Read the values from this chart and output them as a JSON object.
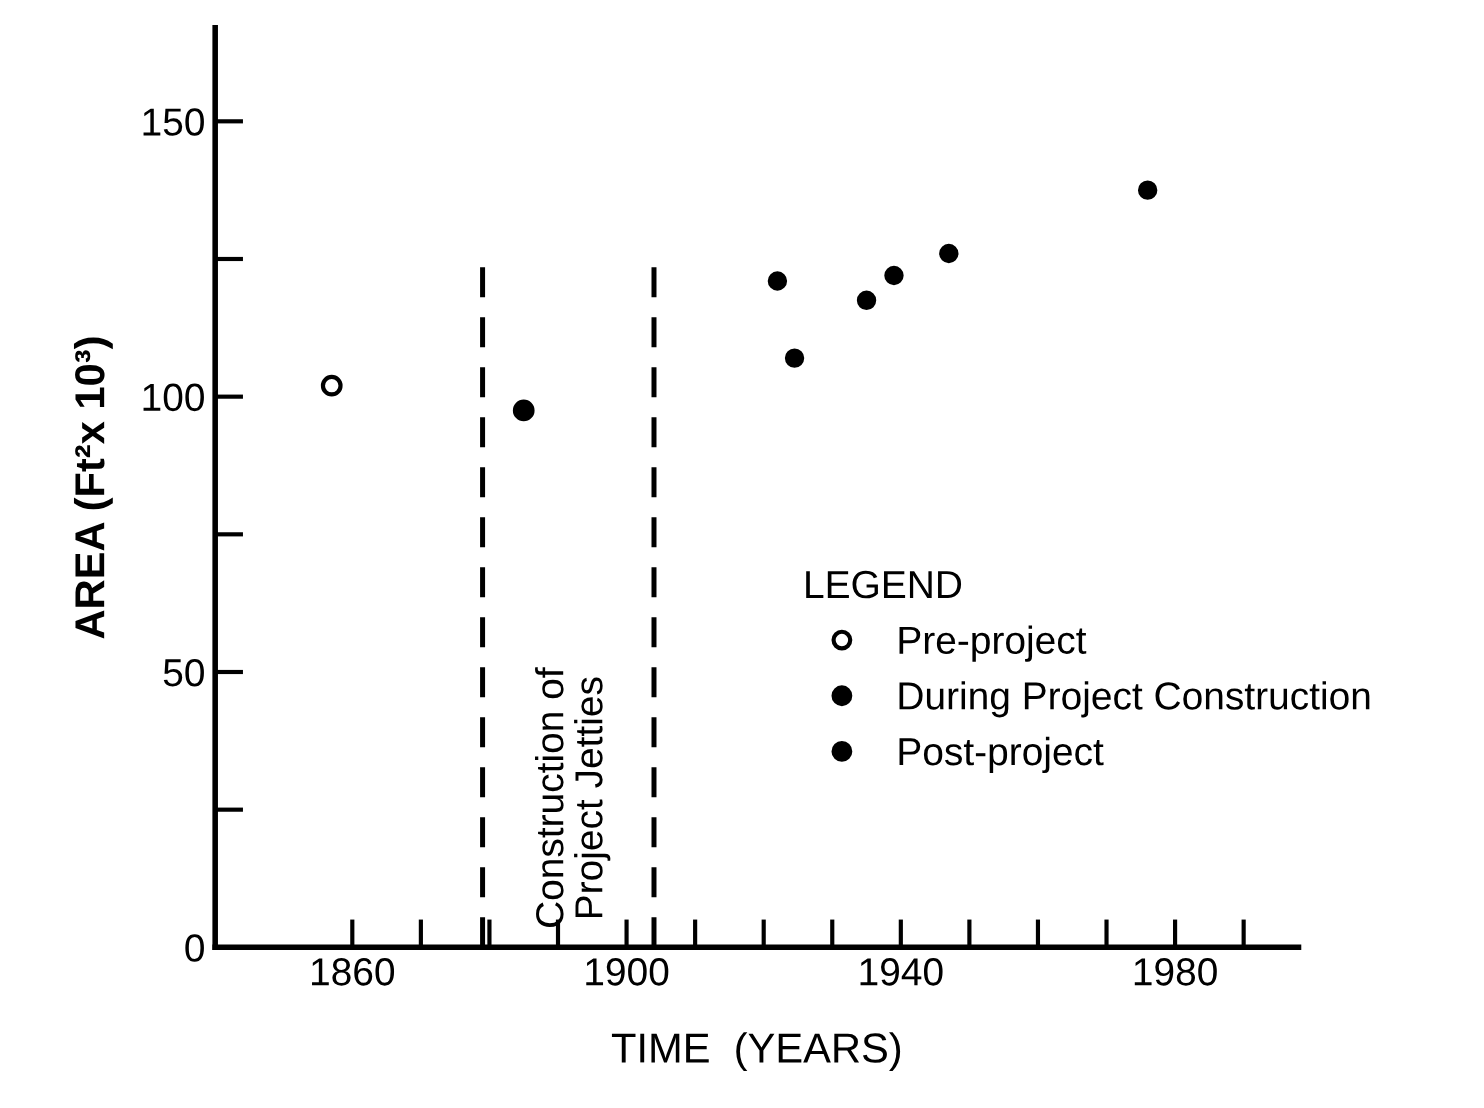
{
  "chart_data": {
    "type": "scatter",
    "xlabel": "TIME  (YEARS)",
    "ylabel": "AREA (Ft²x 10³)",
    "legend_title": "LEGEND",
    "legend": "right",
    "marker": "circle",
    "grid": false,
    "xlim": [
      1840,
      1998
    ],
    "ylim": [
      0,
      167
    ],
    "xticks": [
      1860,
      {
        "value": 1870,
        "label": null
      },
      {
        "value": 1880,
        "label": null
      },
      {
        "value": 1890,
        "label": null
      },
      1900,
      {
        "value": 1910,
        "label": null
      },
      {
        "value": 1920,
        "label": null
      },
      {
        "value": 1930,
        "label": null
      },
      1940,
      {
        "value": 1950,
        "label": null
      },
      {
        "value": 1960,
        "label": null
      },
      {
        "value": 1970,
        "label": null
      },
      1980,
      {
        "value": 1990,
        "label": null
      }
    ],
    "yticks": [
      0,
      {
        "value": 25,
        "label": null
      },
      50,
      {
        "value": 75,
        "label": null
      },
      100,
      {
        "value": 125,
        "label": null
      },
      150
    ],
    "ref_lines": [
      {
        "axis": "x",
        "value": 1879,
        "line_style": "dashed",
        "color": "#000000"
      },
      {
        "axis": "x",
        "value": 1904,
        "line_style": "dashed",
        "color": "#000000"
      }
    ],
    "annotations": [
      "Construction of\nProject Jetties"
    ],
    "series": [
      {
        "name": "Pre-project",
        "color": "#ffffff",
        "x": [
          1857
        ],
        "values": [
          102
        ]
      },
      {
        "name": "During Project Construction",
        "color": "#000000",
        "x": [
          1885
        ],
        "values": [
          97.5
        ]
      },
      {
        "name": "Post-project",
        "color": "#000000",
        "x": [
          1922,
          1924.5,
          1935,
          1939,
          1947,
          1976
        ],
        "values": [
          121,
          107,
          117.5,
          122,
          126,
          137.5
        ]
      }
    ]
  }
}
